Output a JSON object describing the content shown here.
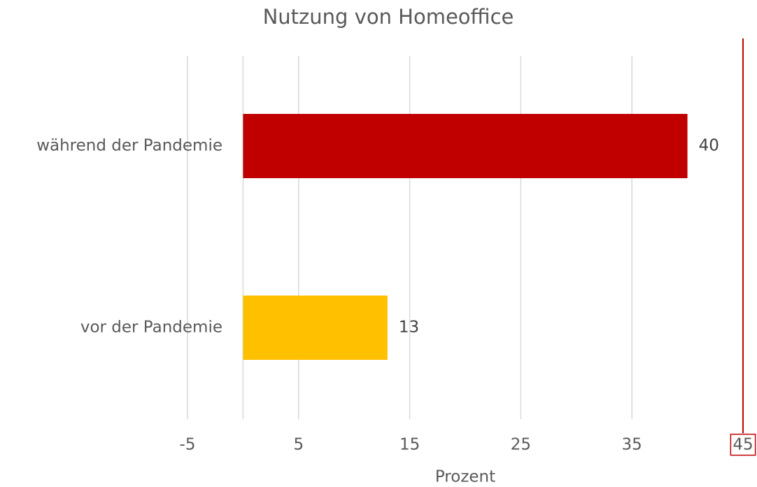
{
  "chart_data": {
    "type": "barh",
    "title": "Nutzung von Homeoffice",
    "categories": [
      "während der Pandemie",
      "vor der Pandemie"
    ],
    "values": [
      40,
      13
    ],
    "colors": [
      "#c00000",
      "#ffc000"
    ],
    "xlabel": "Prozent",
    "xlim": [
      -5,
      45
    ],
    "xticks": [
      -5,
      5,
      15,
      25,
      35,
      45
    ],
    "grid": true,
    "highlighted_ticks": [
      45
    ],
    "highlight_color": "#c00000"
  }
}
